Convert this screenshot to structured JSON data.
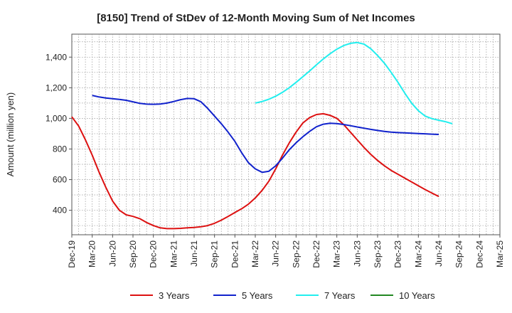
{
  "chart_data": {
    "type": "line",
    "title": "[8150]  Trend of StDev of 12-Month Moving Sum of Net Incomes",
    "ylabel": "Amount (million yen)",
    "xlabel": "",
    "ylim": [
      240,
      1550
    ],
    "yticks": [
      400,
      600,
      800,
      1000,
      1200,
      1400
    ],
    "ytick_labels": [
      "400",
      "600",
      "800",
      "1,000",
      "1,200",
      "1,400"
    ],
    "xtick_labels": [
      "Dec-19",
      "Mar-20",
      "Jun-20",
      "Sep-20",
      "Dec-20",
      "Mar-21",
      "Jun-21",
      "Sep-21",
      "Dec-21",
      "Mar-22",
      "Jun-22",
      "Sep-22",
      "Dec-22",
      "Mar-23",
      "Jun-23",
      "Sep-23",
      "Dec-23",
      "Mar-24",
      "Jun-24",
      "Sep-24",
      "Dec-24",
      "Mar-25"
    ],
    "grid": true,
    "legend_position": "bottom",
    "series": [
      {
        "name": "3 Years",
        "color": "#dd1111",
        "values": [
          1010,
          950,
          860,
          760,
          650,
          550,
          460,
          400,
          370,
          360,
          345,
          320,
          300,
          285,
          280,
          280,
          282,
          285,
          288,
          292,
          300,
          315,
          335,
          360,
          385,
          410,
          440,
          480,
          530,
          590,
          670,
          760,
          840,
          910,
          970,
          1005,
          1025,
          1030,
          1020,
          1000,
          960,
          910,
          860,
          810,
          765,
          725,
          690,
          660,
          635,
          610,
          585,
          560,
          535,
          512,
          490
        ]
      },
      {
        "name": "5 Years",
        "color": "#1122cc",
        "values": [
          null,
          null,
          null,
          null,
          null,
          null,
          null,
          null,
          null,
          null,
          null,
          null,
          null,
          null,
          null,
          null,
          null,
          null,
          null,
          null,
          null,
          null,
          null,
          null,
          null,
          null,
          null,
          null,
          null,
          null,
          null,
          null,
          null,
          null,
          null,
          null,
          null,
          null,
          null,
          null,
          null,
          null,
          null,
          null,
          null,
          null,
          null,
          null,
          null,
          null,
          null,
          null,
          null,
          null,
          null
        ],
        "values_monthly": [
          1150,
          1140,
          1133,
          1128,
          1124,
          1118,
          1108,
          1098,
          1093,
          1092,
          1094,
          1100,
          1110,
          1122,
          1130,
          1128,
          1108,
          1065,
          1015,
          965,
          910,
          850,
          775,
          710,
          670,
          648,
          655,
          690,
          740,
          795,
          840,
          880,
          915,
          945,
          962,
          968,
          966,
          960,
          952,
          944,
          936,
          928,
          921,
          915,
          910,
          907,
          905,
          903,
          901,
          899,
          897,
          895
        ],
        "start_label": "Mar-20"
      },
      {
        "name": "7 Years",
        "color": "#22eeee",
        "values_monthly": [
          1100,
          1110,
          1125,
          1145,
          1170,
          1200,
          1235,
          1272,
          1310,
          1350,
          1388,
          1422,
          1452,
          1475,
          1490,
          1495,
          1485,
          1455,
          1410,
          1360,
          1300,
          1235,
          1165,
          1100,
          1050,
          1015,
          998,
          988,
          978,
          965
        ],
        "start_label": "Mar-22"
      },
      {
        "name": "10 Years",
        "color": "#228822",
        "values_monthly": []
      }
    ]
  }
}
